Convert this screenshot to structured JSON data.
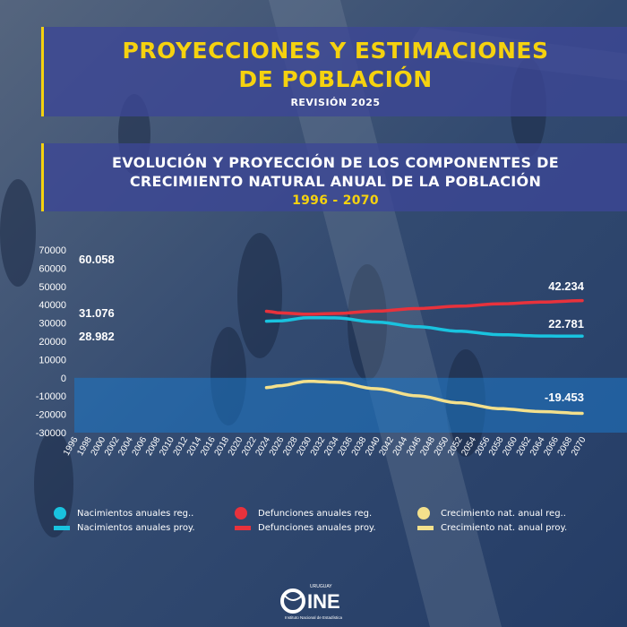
{
  "header": {
    "title_line1": "PROYECCIONES Y ESTIMACIONES",
    "title_line2": "DE POBLACIÓN",
    "subtitle": "REVISIÓN 2025",
    "chart_title_line1": "EVOLUCIÓN Y PROYECCIÓN DE LOS COMPONENTES DE",
    "chart_title_line2": "CRECIMIENTO NATURAL ANUAL DE LA POBLACIÓN",
    "chart_title_line3": "1996 - 2070"
  },
  "colors": {
    "accent": "#f5d20f",
    "births": "#19c3df",
    "deaths": "#e8323c",
    "growth": "#f3e08c"
  },
  "chart_data": {
    "type": "line",
    "title": "EVOLUCIÓN Y PROYECCIÓN DE LOS COMPONENTES DE CRECIMIENTO NATURAL ANUAL DE LA POBLACIÓN",
    "xlim": [
      1996,
      2070
    ],
    "ylim": [
      -30000,
      70000
    ],
    "x_ticks": [
      1996,
      1998,
      2000,
      2002,
      2004,
      2006,
      2008,
      2010,
      2012,
      2014,
      2016,
      2018,
      2020,
      2022,
      2024,
      2026,
      2028,
      2030,
      2032,
      2034,
      2036,
      2038,
      2040,
      2042,
      2044,
      2046,
      2048,
      2050,
      2052,
      2054,
      2056,
      2058,
      2060,
      2062,
      2064,
      2066,
      2068,
      2070
    ],
    "y_ticks": [
      70000,
      60000,
      50000,
      40000,
      30000,
      20000,
      10000,
      0,
      -10000,
      -20000,
      -30000
    ],
    "y_tick_labels": [
      "70000",
      "60000",
      "50000",
      "40000",
      "30000",
      "20000",
      "10000",
      "0",
      "-10000",
      "-20000",
      "-30000"
    ],
    "series": [
      {
        "name": "Nacimientos anuales proy.",
        "color": "#19c3df",
        "x": [
          2024,
          2026,
          2030,
          2034,
          2040,
          2046,
          2052,
          2058,
          2064,
          2070
        ],
        "y": [
          31000,
          31200,
          32900,
          32800,
          30500,
          28000,
          25500,
          23600,
          22900,
          22781
        ]
      },
      {
        "name": "Defunciones anuales proy.",
        "color": "#e8323c",
        "x": [
          2024,
          2026,
          2030,
          2034,
          2040,
          2046,
          2052,
          2058,
          2064,
          2070
        ],
        "y": [
          36400,
          35500,
          34800,
          35200,
          36500,
          37900,
          39200,
          40500,
          41400,
          42234
        ]
      },
      {
        "name": "Crecimiento nat. anual proy.",
        "color": "#f3e08c",
        "x": [
          2024,
          2026,
          2030,
          2034,
          2040,
          2046,
          2052,
          2058,
          2064,
          2070
        ],
        "y": [
          -5400,
          -4300,
          -1900,
          -2400,
          -6000,
          -9900,
          -13700,
          -16900,
          -18500,
          -19453
        ]
      }
    ],
    "annotations": [
      {
        "label": "60.058"
      },
      {
        "label": "31.076"
      },
      {
        "label": "28.982"
      },
      {
        "label": "42.234"
      },
      {
        "label": "22.781"
      },
      {
        "label": "-19.453"
      }
    ],
    "grid": false,
    "legend_position": "bottom"
  },
  "legend": [
    {
      "label": "Nacimientos anuales reg..",
      "color": "#19c3df",
      "kind": "dot"
    },
    {
      "label": "Nacimientos anuales proy.",
      "color": "#19c3df",
      "kind": "bar"
    },
    {
      "label": "Defunciones anuales reg.",
      "color": "#e8323c",
      "kind": "dot"
    },
    {
      "label": "Defunciones anuales proy.",
      "color": "#e8323c",
      "kind": "bar"
    },
    {
      "label": "Crecimiento nat. anual reg..",
      "color": "#f3e08c",
      "kind": "dot"
    },
    {
      "label": "Crecimiento nat. anual proy.",
      "color": "#f3e08c",
      "kind": "bar"
    }
  ],
  "logo": {
    "country": "URUGUAY",
    "acronym": "INE",
    "name": "Instituto Nacional de Estadística"
  }
}
